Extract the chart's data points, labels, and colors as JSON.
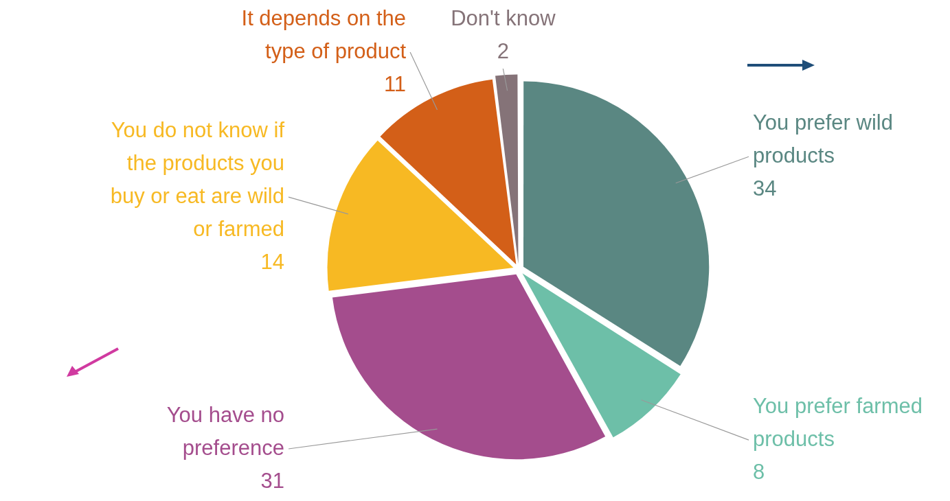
{
  "chart_data": {
    "type": "pie",
    "categories": [
      "You prefer wild products",
      "You prefer farmed products",
      "You have no preference",
      "You do not know if the products you buy or eat are wild or farmed",
      "It depends on the type of product",
      "Don't know"
    ],
    "values": [
      34,
      8,
      31,
      14,
      11,
      2
    ],
    "colors": [
      "#5a8782",
      "#6dbfa8",
      "#a44d8d",
      "#f7b923",
      "#d35f18",
      "#857378"
    ],
    "data_labels": true,
    "legend": false
  }
}
